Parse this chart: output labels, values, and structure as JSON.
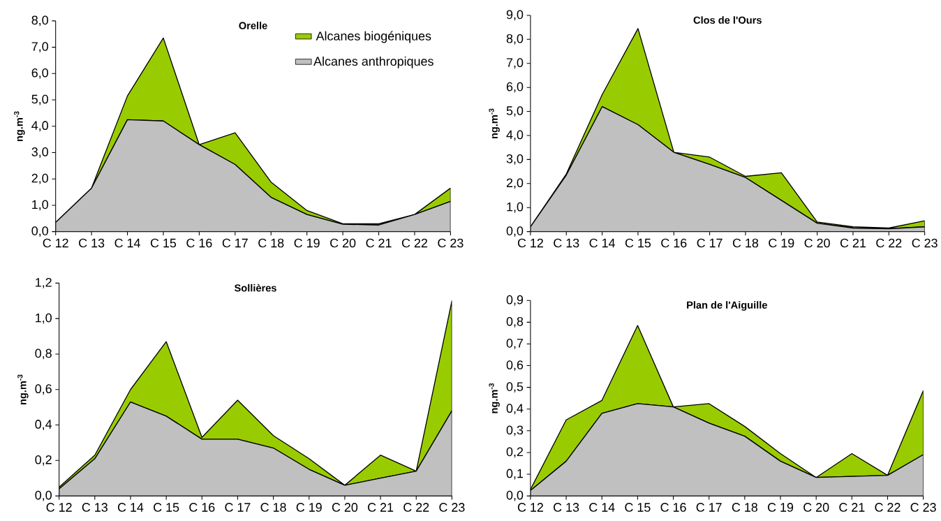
{
  "chart_data": [
    {
      "type": "area",
      "stacked": true,
      "title": "Orelle",
      "ylabel": "ng.m$^{-3}$",
      "legend": "top right",
      "categories": [
        "C 12",
        "C 13",
        "C 14",
        "C 15",
        "C 16",
        "C 17",
        "C 18",
        "C 19",
        "C 20",
        "C 21",
        "C 22",
        "C 23"
      ],
      "ylim": [
        0,
        8
      ],
      "yticks": [
        {
          "value": 0,
          "label": "0,0"
        },
        {
          "value": 1,
          "label": "1,0"
        },
        {
          "value": 2,
          "label": "2,0"
        },
        {
          "value": 3,
          "label": "3,0"
        },
        {
          "value": 4,
          "label": "4,0"
        },
        {
          "value": 5,
          "label": "5,0"
        },
        {
          "value": 6,
          "label": "6,0"
        },
        {
          "value": 7,
          "label": "7,0"
        },
        {
          "value": 8,
          "label": "8,0"
        }
      ],
      "series": [
        {
          "name": "Alcanes anthropiques",
          "color": "#c0c0c0",
          "values": [
            0.35,
            1.65,
            4.25,
            4.2,
            3.3,
            2.55,
            1.3,
            0.65,
            0.28,
            0.25,
            0.65,
            1.15
          ]
        },
        {
          "name": "Alcanes biogéniques",
          "color": "#99cc00",
          "values": [
            0,
            0,
            0.9,
            3.15,
            0,
            1.2,
            0.58,
            0.15,
            0.02,
            0.05,
            0,
            0.5
          ]
        }
      ]
    },
    {
      "type": "area",
      "stacked": true,
      "title": "Clos de l'Ours",
      "ylabel": "ng.m$^{-3}$",
      "categories": [
        "C 12",
        "C 13",
        "C 14",
        "C 15",
        "C 16",
        "C 17",
        "C 18",
        "C 19",
        "C 20",
        "C 21",
        "C 22",
        "C 23"
      ],
      "ylim": [
        0,
        9
      ],
      "yticks": [
        {
          "value": 0,
          "label": "0,0"
        },
        {
          "value": 1,
          "label": "1,0"
        },
        {
          "value": 2,
          "label": "2,0"
        },
        {
          "value": 3,
          "label": "3,0"
        },
        {
          "value": 4,
          "label": "4,0"
        },
        {
          "value": 5,
          "label": "5,0"
        },
        {
          "value": 6,
          "label": "6,0"
        },
        {
          "value": 7,
          "label": "7,0"
        },
        {
          "value": 8,
          "label": "8,0"
        },
        {
          "value": 9,
          "label": "9,0"
        }
      ],
      "series": [
        {
          "color": "#c0c0c0",
          "values": [
            0.2,
            2.35,
            5.2,
            4.45,
            3.3,
            2.8,
            2.25,
            1.3,
            0.35,
            0.15,
            0.12,
            0.2
          ]
        },
        {
          "color": "#99cc00",
          "values": [
            0,
            0.05,
            0.5,
            4.0,
            0,
            0.3,
            0.05,
            1.15,
            0.05,
            0.05,
            0.03,
            0.25
          ]
        }
      ]
    },
    {
      "type": "area",
      "stacked": true,
      "title": "Sollières",
      "ylabel": "ng.m$^{-3}$",
      "categories": [
        "C 12",
        "C 13",
        "C 14",
        "C 15",
        "C 16",
        "C 17",
        "C 18",
        "C 19",
        "C 20",
        "C 21",
        "C 22",
        "C 23"
      ],
      "ylim": [
        0,
        1.2
      ],
      "yticks": [
        {
          "value": 0,
          "label": "0,0"
        },
        {
          "value": 0.2,
          "label": "0,2"
        },
        {
          "value": 0.4,
          "label": "0,4"
        },
        {
          "value": 0.6,
          "label": "0,6"
        },
        {
          "value": 0.8,
          "label": "0,8"
        },
        {
          "value": 1.0,
          "label": "1,0"
        },
        {
          "value": 1.2,
          "label": "1,2"
        }
      ],
      "series": [
        {
          "color": "#c0c0c0",
          "values": [
            0.04,
            0.21,
            0.53,
            0.45,
            0.32,
            0.32,
            0.27,
            0.15,
            0.06,
            0.1,
            0.14,
            0.48
          ]
        },
        {
          "color": "#99cc00",
          "values": [
            0.01,
            0.02,
            0.07,
            0.42,
            0.01,
            0.22,
            0.07,
            0.06,
            0,
            0.13,
            0,
            0.62
          ]
        }
      ]
    },
    {
      "type": "area",
      "stacked": true,
      "title": "Plan de l'Aiguille",
      "ylabel": "ng.m$^{-3}$",
      "categories": [
        "C 12",
        "C 13",
        "C 14",
        "C 15",
        "C 16",
        "C 17",
        "C 18",
        "C 19",
        "C 20",
        "C 21",
        "C 22",
        "C 23"
      ],
      "ylim": [
        0,
        0.9
      ],
      "yticks": [
        {
          "value": 0,
          "label": "0,0"
        },
        {
          "value": 0.1,
          "label": "0,1"
        },
        {
          "value": 0.2,
          "label": "0,2"
        },
        {
          "value": 0.3,
          "label": "0,3"
        },
        {
          "value": 0.4,
          "label": "0,4"
        },
        {
          "value": 0.5,
          "label": "0,5"
        },
        {
          "value": 0.6,
          "label": "0,6"
        },
        {
          "value": 0.7,
          "label": "0,7"
        },
        {
          "value": 0.8,
          "label": "0,8"
        },
        {
          "value": 0.9,
          "label": "0,9"
        }
      ],
      "series": [
        {
          "color": "#c0c0c0",
          "values": [
            0.025,
            0.16,
            0.38,
            0.425,
            0.41,
            0.335,
            0.275,
            0.16,
            0.085,
            0.09,
            0.095,
            0.19
          ]
        },
        {
          "color": "#99cc00",
          "values": [
            0.005,
            0.19,
            0.06,
            0.36,
            0,
            0.09,
            0.045,
            0.035,
            0,
            0.105,
            0,
            0.295
          ]
        }
      ]
    }
  ]
}
